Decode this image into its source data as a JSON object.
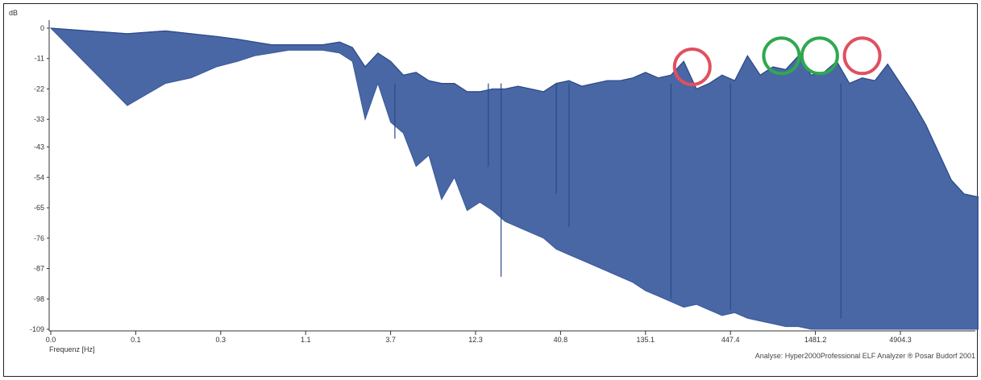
{
  "chart_data": {
    "type": "area",
    "title": "",
    "ylabel": "dB",
    "xlabel": "Frequenz [Hz]",
    "x_scale": "log",
    "ylim": [
      -109,
      0
    ],
    "y_ticks": [
      {
        "value": 0,
        "label": "0"
      },
      {
        "value": -11,
        "label": "-11"
      },
      {
        "value": -22,
        "label": "-22"
      },
      {
        "value": -33,
        "label": "-33"
      },
      {
        "value": -43,
        "label": "-43"
      },
      {
        "value": -54,
        "label": "-54"
      },
      {
        "value": -65,
        "label": "-65"
      },
      {
        "value": -76,
        "label": "-76"
      },
      {
        "value": -87,
        "label": "-87"
      },
      {
        "value": -98,
        "label": "-98"
      },
      {
        "value": -109,
        "label": "-109"
      }
    ],
    "x_ticks": [
      {
        "value": 0.0,
        "label": "0.0"
      },
      {
        "value": 0.1,
        "label": "0.1"
      },
      {
        "value": 0.3,
        "label": "0.3"
      },
      {
        "value": 1.1,
        "label": "1.1"
      },
      {
        "value": 3.7,
        "label": "3.7"
      },
      {
        "value": 12.3,
        "label": "12.3"
      },
      {
        "value": 40.8,
        "label": "40.8"
      },
      {
        "value": 135.1,
        "label": "135.1"
      },
      {
        "value": 447.4,
        "label": "447.4"
      },
      {
        "value": 1481.2,
        "label": "1481.2"
      },
      {
        "value": 4904.3,
        "label": "4904.3"
      }
    ],
    "series": [
      {
        "color": "#3a5a9c",
        "x_index": [
          0,
          0.9,
          1.35,
          1.65,
          1.95,
          2.2,
          2.4,
          2.6,
          2.8,
          3.0,
          3.2,
          3.4,
          3.55,
          3.7,
          3.85,
          4.0,
          4.15,
          4.3,
          4.45,
          4.6,
          4.75,
          4.9,
          5.05,
          5.2,
          5.35,
          5.5,
          5.65,
          5.8,
          5.95,
          6.1,
          6.25,
          6.4,
          6.55,
          6.7,
          6.85,
          7.0,
          7.15,
          7.3,
          7.45,
          7.6,
          7.75,
          7.9,
          8.05,
          8.2,
          8.35,
          8.5,
          8.65,
          8.8,
          8.95,
          9.1,
          9.25,
          9.4,
          9.55,
          9.7,
          9.85,
          10.0,
          10.15,
          10.3,
          10.45,
          10.6,
          10.75,
          10.9,
          11.05,
          11.2
        ],
        "upper": [
          0,
          -2,
          -1,
          -2,
          -3,
          -4,
          -5,
          -6,
          -6,
          -6,
          -6,
          -5,
          -7,
          -14,
          -9,
          -12,
          -17,
          -16,
          -19,
          -20,
          -20,
          -23,
          -23,
          -22,
          -22,
          -21,
          -22,
          -23,
          -20,
          -19,
          -21,
          -20,
          -19,
          -19,
          -18,
          -16,
          -18,
          -17,
          -12,
          -22,
          -20,
          -17,
          -19,
          -10,
          -17,
          -14,
          -15,
          -10,
          -17,
          -16,
          -12,
          -20,
          -18,
          -19,
          -13,
          -20,
          -27,
          -35,
          -45,
          -55,
          -60,
          -61,
          -62,
          -63
        ],
        "lower": [
          0,
          -28,
          -20,
          -18,
          -14,
          -12,
          -10,
          -9,
          -8,
          -8,
          -8,
          -9,
          -12,
          -33,
          -20,
          -34,
          -38,
          -50,
          -46,
          -62,
          -54,
          -66,
          -63,
          -66,
          -70,
          -72,
          -74,
          -76,
          -80,
          -82,
          -84,
          -86,
          -88,
          -90,
          -92,
          -95,
          -97,
          -99,
          -101,
          -100,
          -102,
          -104,
          -103,
          -105,
          -106,
          -107,
          -108,
          -108,
          -109,
          -109,
          -109,
          -109,
          -109,
          -109,
          -109,
          -109,
          -109,
          -109,
          -109,
          -109,
          -109,
          -109,
          -109,
          -109
        ],
        "dips": [
          {
            "x_index": 4.05,
            "value": -40
          },
          {
            "x_index": 5.15,
            "value": -50
          },
          {
            "x_index": 5.95,
            "value": -60
          },
          {
            "x_index": 5.3,
            "value": -90
          },
          {
            "x_index": 6.1,
            "value": -72
          },
          {
            "x_index": 7.3,
            "value": -98
          },
          {
            "x_index": 8.0,
            "value": -102
          },
          {
            "x_index": 9.3,
            "value": -105
          }
        ]
      }
    ],
    "annotations": [
      {
        "shape": "circle",
        "color": "#e05060",
        "x_index": 7.55,
        "value": -14
      },
      {
        "shape": "circle",
        "color": "#2fa84f",
        "x_index": 8.6,
        "value": -10
      },
      {
        "shape": "circle",
        "color": "#2fa84f",
        "x_index": 9.05,
        "value": -10
      },
      {
        "shape": "circle",
        "color": "#e05060",
        "x_index": 9.55,
        "value": -10
      }
    ],
    "grid": false,
    "legend": "none"
  },
  "footer": {
    "credit": "Analyse: Hyper2000Professional ELF Analyzer ® Posar Budorf 2001"
  }
}
